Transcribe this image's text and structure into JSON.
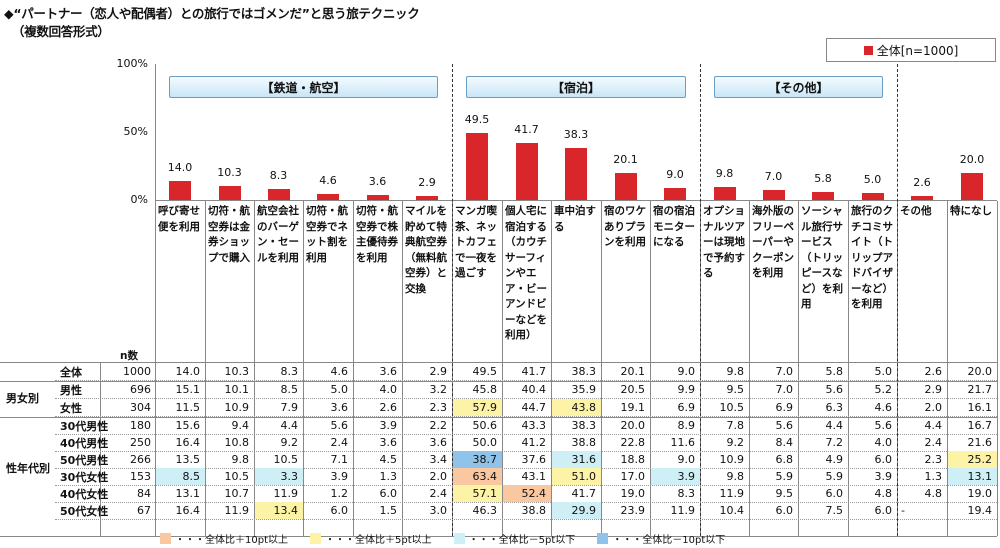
{
  "title": "◆“パートナー（恋人や配偶者）との旅行ではゴメンだ”と思う旅テクニック",
  "subtitle": "（複数回答形式）",
  "legend_label": "全体[n=1000]",
  "colors": {
    "bar": "#d9262a",
    "high10": "#f9c7a0",
    "high5": "#fdf3a6",
    "low5": "#cdeff5",
    "low10": "#8fc3ea"
  },
  "chart_data": {
    "type": "bar",
    "series": [
      {
        "name": "全体[n=1000]",
        "values": [
          14.0,
          10.3,
          8.3,
          4.6,
          3.6,
          2.9,
          49.5,
          41.7,
          38.3,
          20.1,
          9.0,
          9.8,
          7.0,
          5.8,
          5.0,
          2.6,
          20.0
        ]
      }
    ],
    "categories": [
      "呼び寄せ便を利用",
      "切符・航空券は金券ショップで購入",
      "航空会社のバーゲン・セールを利用",
      "切符・航空券でネット割を利用",
      "切符・航空券で株主優待券を利用",
      "マイルを貯めて特典航空券（無料航空券）と交換",
      "マンガ喫茶、ネットカフェで一夜を過ごす",
      "個人宅に宿泊する（カウチサーフィンやエア・ビーアンドビーなどを利用）",
      "車中泊する",
      "宿のワケありプランを利用",
      "宿の宿泊モニターになる",
      "オプショナルツアーは現地で予約する",
      "海外版のフリーペーパーやクーポンを利用",
      "ソーシャル旅行サービス（トリッピースなど）を利用",
      "旅行のクチコミサイト（トリップアドバイザーなど）を利用",
      "その他",
      "特になし"
    ],
    "groups": [
      {
        "label": "【鉄道・航空】",
        "span": [
          0,
          5
        ]
      },
      {
        "label": "【宿泊】",
        "span": [
          6,
          10
        ]
      },
      {
        "label": "【その他】",
        "span": [
          11,
          14
        ]
      }
    ],
    "y_ticks": [
      "100%",
      "50%",
      "0%"
    ],
    "ylim": [
      0,
      100
    ],
    "table": {
      "n_header": "n数",
      "sections": [
        {
          "label": "",
          "rows": [
            {
              "label": "全体",
              "n": "1000",
              "values": [
                "14.0",
                "10.3",
                "8.3",
                "4.6",
                "3.6",
                "2.9",
                "49.5",
                "41.7",
                "38.3",
                "20.1",
                "9.0",
                "9.8",
                "7.0",
                "5.8",
                "5.0",
                "2.6",
                "20.0"
              ],
              "hl": {}
            }
          ]
        },
        {
          "label": "男女別",
          "rows": [
            {
              "label": "男性",
              "n": "696",
              "values": [
                "15.1",
                "10.1",
                "8.5",
                "5.0",
                "4.0",
                "3.2",
                "45.8",
                "40.4",
                "35.9",
                "20.5",
                "9.9",
                "9.5",
                "7.0",
                "5.6",
                "5.2",
                "2.9",
                "21.7"
              ],
              "hl": {}
            },
            {
              "label": "女性",
              "n": "304",
              "values": [
                "11.5",
                "10.9",
                "7.9",
                "3.6",
                "2.6",
                "2.3",
                "57.9",
                "44.7",
                "43.8",
                "19.1",
                "6.9",
                "10.5",
                "6.9",
                "6.3",
                "4.6",
                "2.0",
                "16.1"
              ],
              "hl": {
                "6": "high5",
                "8": "high5"
              }
            }
          ]
        },
        {
          "label": "性年代別",
          "rows": [
            {
              "label": "30代男性",
              "n": "180",
              "values": [
                "15.6",
                "9.4",
                "4.4",
                "5.6",
                "3.9",
                "2.2",
                "50.6",
                "43.3",
                "38.3",
                "20.0",
                "8.9",
                "7.8",
                "5.6",
                "4.4",
                "5.6",
                "4.4",
                "16.7"
              ],
              "hl": {}
            },
            {
              "label": "40代男性",
              "n": "250",
              "values": [
                "16.4",
                "10.8",
                "9.2",
                "2.4",
                "3.6",
                "3.6",
                "50.0",
                "41.2",
                "38.8",
                "22.8",
                "11.6",
                "9.2",
                "8.4",
                "7.2",
                "4.0",
                "2.4",
                "21.6"
              ],
              "hl": {}
            },
            {
              "label": "50代男性",
              "n": "266",
              "values": [
                "13.5",
                "9.8",
                "10.5",
                "7.1",
                "4.5",
                "3.4",
                "38.7",
                "37.6",
                "31.6",
                "18.8",
                "9.0",
                "10.9",
                "6.8",
                "4.9",
                "6.0",
                "2.3",
                "25.2"
              ],
              "hl": {
                "6": "low10",
                "8": "low5",
                "16": "high5"
              }
            },
            {
              "label": "30代女性",
              "n": "153",
              "values": [
                "8.5",
                "10.5",
                "3.3",
                "3.9",
                "1.3",
                "2.0",
                "63.4",
                "43.1",
                "51.0",
                "17.0",
                "3.9",
                "9.8",
                "5.9",
                "5.9",
                "3.9",
                "1.3",
                "13.1"
              ],
              "hl": {
                "0": "low5",
                "2": "low5",
                "6": "high10",
                "8": "high5",
                "10": "low5",
                "16": "low5"
              }
            },
            {
              "label": "40代女性",
              "n": "84",
              "values": [
                "13.1",
                "10.7",
                "11.9",
                "1.2",
                "6.0",
                "2.4",
                "57.1",
                "52.4",
                "41.7",
                "19.0",
                "8.3",
                "11.9",
                "9.5",
                "6.0",
                "4.8",
                "4.8",
                "19.0"
              ],
              "hl": {
                "6": "high5",
                "7": "high10"
              }
            },
            {
              "label": "50代女性",
              "n": "67",
              "values": [
                "16.4",
                "11.9",
                "13.4",
                "6.0",
                "1.5",
                "3.0",
                "46.3",
                "38.8",
                "29.9",
                "23.9",
                "11.9",
                "10.4",
                "6.0",
                "7.5",
                "6.0",
                "-",
                "19.4"
              ],
              "hl": {
                "2": "high5",
                "8": "low5"
              }
            }
          ]
        }
      ]
    }
  },
  "bottom_legend": [
    {
      "key": "high10",
      "label": "全体比＋10pt以上"
    },
    {
      "key": "high5",
      "label": "全体比＋5pt以上"
    },
    {
      "key": "low5",
      "label": "全体比－5pt以下"
    },
    {
      "key": "low10",
      "label": "全体比－10pt以下"
    }
  ]
}
